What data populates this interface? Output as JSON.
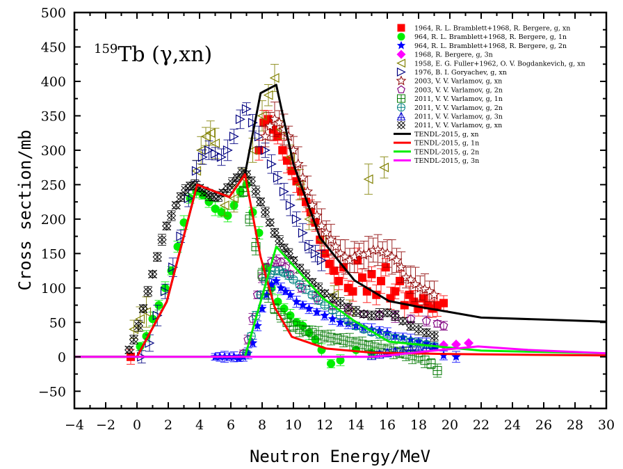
{
  "chart_data": {
    "type": "scatter",
    "title": "",
    "annotation": {
      "sup": "159",
      "text": "Tb (γ,xn)"
    },
    "xlabel": "Neutron Energy/MeV",
    "ylabel": "Cross section/mb",
    "xlim": [
      -4,
      30
    ],
    "ylim": [
      -75,
      500
    ],
    "xticks": [
      -4,
      -2,
      0,
      2,
      4,
      6,
      8,
      10,
      12,
      14,
      16,
      18,
      20,
      22,
      24,
      26,
      28,
      30
    ],
    "yticks": [
      -50,
      0,
      50,
      100,
      150,
      200,
      250,
      300,
      350,
      400,
      450,
      500
    ],
    "grid": false,
    "legend_position": "top-right",
    "series": [
      {
        "name": "1964, R. L. Bramblett+1968, R. Bergere,  g, xn",
        "kind": "points",
        "marker": "square",
        "color": "#ff0000",
        "x": [
          -0.4,
          7.8,
          8.1,
          8.4,
          8.7,
          9.0,
          9.3,
          9.6,
          9.9,
          10.2,
          10.5,
          10.8,
          11.1,
          11.4,
          11.7,
          12.0,
          12.3,
          12.6,
          12.9,
          13.2,
          13.5,
          13.8,
          14.1,
          14.4,
          14.7,
          15.0,
          15.3,
          15.6,
          15.9,
          16.2,
          16.5,
          16.8,
          17.1,
          17.4,
          17.7,
          18.0,
          18.3,
          18.6,
          18.9,
          19.2,
          19.6
        ],
        "y": [
          0,
          300,
          340,
          345,
          330,
          320,
          300,
          285,
          270,
          255,
          240,
          225,
          210,
          195,
          170,
          150,
          135,
          125,
          110,
          130,
          100,
          95,
          140,
          115,
          95,
          120,
          90,
          110,
          130,
          85,
          95,
          110,
          75,
          90,
          80,
          70,
          85,
          75,
          70,
          75,
          78
        ],
        "err": 18
      },
      {
        "name": "964, R. L. Bramblett+1968, R. Bergere,  g, 1n",
        "kind": "points",
        "marker": "circle",
        "color": "#00ee00",
        "x": [
          0.2,
          0.6,
          1.0,
          1.4,
          1.8,
          2.2,
          2.6,
          3.0,
          3.4,
          3.8,
          4.2,
          4.6,
          5.0,
          5.4,
          5.8,
          6.2,
          6.6,
          7.0,
          7.4,
          7.8,
          8.2,
          8.6,
          9.0,
          9.4,
          9.8,
          10.2,
          10.6,
          11.0,
          11.4,
          11.8,
          12.4,
          13.0,
          14.0,
          15.0
        ],
        "y": [
          15,
          30,
          55,
          75,
          100,
          125,
          160,
          195,
          230,
          240,
          235,
          225,
          215,
          210,
          205,
          220,
          240,
          250,
          210,
          180,
          130,
          100,
          80,
          70,
          60,
          50,
          45,
          35,
          25,
          10,
          -10,
          -5,
          10,
          5
        ],
        "err": 10
      },
      {
        "name": "964, R. L. Bramblett+1968, R. Bergere,  g, 2n",
        "kind": "points",
        "marker": "star",
        "color": "#0000ff",
        "x": [
          5.0,
          5.3,
          5.6,
          5.9,
          6.2,
          6.5,
          6.8,
          7.1,
          7.4,
          7.7,
          8.0,
          8.3,
          8.6,
          8.9,
          9.2,
          9.5,
          9.8,
          10.2,
          10.6,
          11.0,
          11.5,
          12.0,
          12.5,
          13.0,
          13.5,
          14.0,
          14.5,
          15.0,
          15.5,
          16.0,
          16.5,
          17.0,
          17.5,
          18.0,
          18.5,
          19.0,
          19.6,
          20.4
        ],
        "y": [
          0,
          0,
          0,
          0,
          0,
          -2,
          0,
          5,
          20,
          45,
          70,
          90,
          105,
          110,
          100,
          95,
          90,
          80,
          75,
          70,
          65,
          60,
          55,
          50,
          48,
          45,
          42,
          40,
          38,
          35,
          30,
          28,
          25,
          22,
          20,
          15,
          2,
          0
        ],
        "err": 8
      },
      {
        "name": "1968, R. Bergere, g, 3n",
        "kind": "points",
        "marker": "diamond",
        "color": "#ff00ff",
        "x": [
          19.6,
          20.4,
          21.2
        ],
        "y": [
          17,
          18,
          20
        ],
        "err": 0
      },
      {
        "name": "1958, E. G. Fuller+1962, O. V. Bogdankevich, g, xn",
        "kind": "points",
        "marker": "triangle-left",
        "color": "#808000",
        "x": [
          -0.2,
          0.2,
          0.6,
          3.8,
          4.1,
          4.4,
          4.7,
          5.0,
          5.6,
          6.2,
          6.8,
          7.4,
          8.0,
          8.4,
          8.8,
          9.2,
          9.8,
          10.4,
          11.0,
          11.8,
          12.6,
          13.6,
          14.8,
          15.8
        ],
        "y": [
          40,
          55,
          65,
          270,
          300,
          320,
          325,
          310,
          220,
          230,
          260,
          300,
          350,
          380,
          405,
          330,
          290,
          250,
          200,
          170,
          90,
          65,
          258,
          275
        ],
        "err": 22
      },
      {
        "name": "1976, B. I. Goryachev, g, xn",
        "kind": "points",
        "marker": "triangle-right",
        "color": "#000080",
        "x": [
          0.3,
          0.8,
          1.3,
          1.8,
          2.3,
          2.8,
          3.3,
          3.8,
          4.2,
          4.6,
          5.0,
          5.4,
          5.8,
          6.2,
          6.6,
          7.0,
          7.4,
          7.8,
          8.2,
          8.6,
          9.0,
          9.4,
          9.8,
          10.2,
          10.6,
          11.0,
          11.4,
          11.8
        ],
        "y": [
          0,
          20,
          60,
          95,
          130,
          175,
          230,
          270,
          290,
          300,
          295,
          290,
          300,
          320,
          345,
          360,
          340,
          320,
          300,
          280,
          260,
          240,
          220,
          200,
          180,
          160,
          150,
          140
        ],
        "err": 15
      },
      {
        "name": "2003, V. V. Varlamov, g, xn",
        "kind": "points",
        "marker": "star-open",
        "color": "#8b0000",
        "x": [
          8.2,
          8.5,
          8.8,
          9.1,
          9.4,
          9.7,
          10.0,
          10.3,
          10.6,
          10.9,
          11.2,
          11.5,
          11.8,
          12.1,
          12.4,
          12.7,
          13.0,
          13.3,
          13.6,
          13.9,
          14.2,
          14.5,
          14.8,
          15.1,
          15.4,
          15.7,
          16.0,
          16.3,
          16.6,
          16.9,
          17.2,
          17.5,
          17.8,
          18.1,
          18.4,
          18.7,
          19.0
        ],
        "y": [
          320,
          335,
          345,
          340,
          330,
          320,
          300,
          280,
          260,
          240,
          220,
          205,
          190,
          180,
          170,
          160,
          150,
          145,
          140,
          145,
          150,
          148,
          150,
          155,
          155,
          152,
          150,
          145,
          140,
          130,
          115,
          112,
          105,
          100,
          98,
          95,
          90
        ],
        "err": 25
      },
      {
        "name": "2003, V. V. Varlamov, g, 2n",
        "kind": "points",
        "marker": "pentagon",
        "color": "#800080",
        "x": [
          6.8,
          7.1,
          7.4,
          7.7,
          8.0,
          8.3,
          8.6,
          8.9,
          9.2,
          9.5,
          9.8,
          10.5,
          11.5,
          12.5,
          13.5,
          14.5,
          15.5,
          16.5,
          17.5,
          18.5,
          19.2,
          19.6
        ],
        "y": [
          5,
          25,
          55,
          90,
          115,
          130,
          138,
          140,
          138,
          130,
          120,
          100,
          85,
          75,
          68,
          62,
          60,
          58,
          55,
          52,
          48,
          45
        ],
        "err": 8
      },
      {
        "name": "2011, V. V. Varlamov, g, 1n",
        "kind": "points",
        "marker": "square-cross",
        "color": "#007700",
        "x": [
          6.8,
          7.2,
          7.6,
          8.0,
          8.4,
          8.8,
          9.2,
          9.6,
          10.0,
          10.4,
          10.8,
          11.2,
          11.6,
          12.0,
          12.4,
          12.8,
          13.2,
          13.6,
          14.0,
          14.4,
          14.8,
          15.2,
          15.6,
          16.0,
          16.4,
          16.8,
          17.2,
          17.6,
          18.0,
          18.4,
          18.8,
          19.2
        ],
        "y": [
          240,
          200,
          160,
          120,
          90,
          70,
          60,
          50,
          45,
          40,
          38,
          35,
          32,
          30,
          28,
          26,
          24,
          22,
          20,
          18,
          16,
          14,
          12,
          10,
          8,
          6,
          4,
          2,
          0,
          -5,
          -10,
          -20
        ],
        "err": 12
      },
      {
        "name": "2011, V. V. Varlamov, g, 2n",
        "kind": "points",
        "marker": "circle-cross",
        "color": "#008080",
        "x": [
          7.0,
          7.3,
          7.6,
          7.9,
          8.2,
          8.5,
          8.8,
          9.1,
          9.4,
          9.7,
          10.0,
          10.4,
          10.8,
          11.2,
          11.6,
          12.0,
          12.5,
          13.0,
          13.5,
          14.0,
          14.5,
          15.0,
          15.5,
          16.0,
          16.5,
          17.0,
          17.5,
          18.0,
          18.5,
          19.0
        ],
        "y": [
          5,
          30,
          60,
          90,
          110,
          120,
          125,
          125,
          122,
          118,
          112,
          105,
          98,
          90,
          82,
          75,
          68,
          60,
          52,
          45,
          40,
          36,
          33,
          30,
          27,
          25,
          22,
          20,
          18,
          15
        ],
        "err": 6
      },
      {
        "name": "2011, V. V. Varlamov, g, 3n",
        "kind": "points",
        "marker": "triangle-cross",
        "color": "#0000cc",
        "x": [
          15.0,
          15.5,
          16.0,
          16.5,
          17.0,
          17.5,
          18.0,
          18.5,
          19.0
        ],
        "y": [
          2,
          4,
          6,
          8,
          10,
          12,
          13,
          14,
          15
        ],
        "err": 5
      },
      {
        "name": "2011, V. V. Varlamov, g, xn",
        "kind": "points",
        "marker": "x-cross",
        "color": "#000000",
        "x": [
          -0.5,
          -0.2,
          0.1,
          0.4,
          0.7,
          1.0,
          1.3,
          1.6,
          1.9,
          2.2,
          2.5,
          2.8,
          3.1,
          3.4,
          3.7,
          4.0,
          4.3,
          4.6,
          4.9,
          5.2,
          5.5,
          5.8,
          6.1,
          6.4,
          6.7,
          7.0,
          7.3,
          7.6,
          7.9,
          8.2,
          8.5,
          8.8,
          9.1,
          9.4,
          9.7,
          10.0,
          10.4,
          10.8,
          11.2,
          11.6,
          12.0,
          12.5,
          13.0,
          13.5,
          14.0,
          14.5,
          15.0,
          15.5,
          16.0,
          16.5,
          17.0,
          17.5,
          18.0,
          18.5,
          19.0
        ],
        "y": [
          10,
          25,
          45,
          70,
          95,
          120,
          145,
          170,
          190,
          205,
          220,
          232,
          242,
          248,
          250,
          245,
          240,
          235,
          232,
          233,
          238,
          245,
          252,
          260,
          268,
          265,
          255,
          240,
          225,
          210,
          195,
          180,
          168,
          158,
          150,
          140,
          128,
          118,
          108,
          100,
          92,
          85,
          78,
          72,
          66,
          62,
          60,
          62,
          64,
          60,
          52,
          45,
          40,
          35,
          30
        ],
        "err": 8
      },
      {
        "name": "TENDL-2015, g, xn",
        "kind": "line",
        "color": "#000000",
        "x": [
          -4,
          0,
          1.9,
          3.85,
          5.9,
          6.9,
          7.9,
          8.9,
          10.0,
          11.7,
          13.9,
          16.1,
          17.9,
          20.0,
          22.0,
          26.0,
          30.0
        ],
        "y": [
          0,
          0,
          80,
          250,
          232,
          265,
          383,
          395,
          280,
          173,
          111,
          81,
          73,
          65,
          57,
          54,
          51
        ]
      },
      {
        "name": "TENDL-2015, g, 1n",
        "kind": "line",
        "color": "#ff0000",
        "x": [
          -4,
          0,
          1.9,
          3.85,
          5.9,
          6.9,
          7.9,
          8.8,
          9.9,
          12.1,
          15.0,
          20.0,
          30.0
        ],
        "y": [
          0,
          0,
          80,
          250,
          232,
          265,
          145,
          72,
          29,
          12,
          6,
          4,
          2
        ]
      },
      {
        "name": "TENDL-2015, g, 2n",
        "kind": "line",
        "color": "#00ee00",
        "x": [
          -4,
          6.9,
          8.9,
          11.9,
          13.9,
          16.1,
          19.2,
          22.0,
          30.0
        ],
        "y": [
          0,
          0,
          160,
          85,
          52,
          22,
          15,
          9,
          5
        ]
      },
      {
        "name": "TENDL-2015, g, 3n",
        "kind": "line",
        "color": "#ff00ff",
        "x": [
          -4,
          15.2,
          18.5,
          21.8,
          25.0,
          30.0
        ],
        "y": [
          0,
          0,
          8,
          15,
          10,
          5
        ]
      }
    ]
  }
}
